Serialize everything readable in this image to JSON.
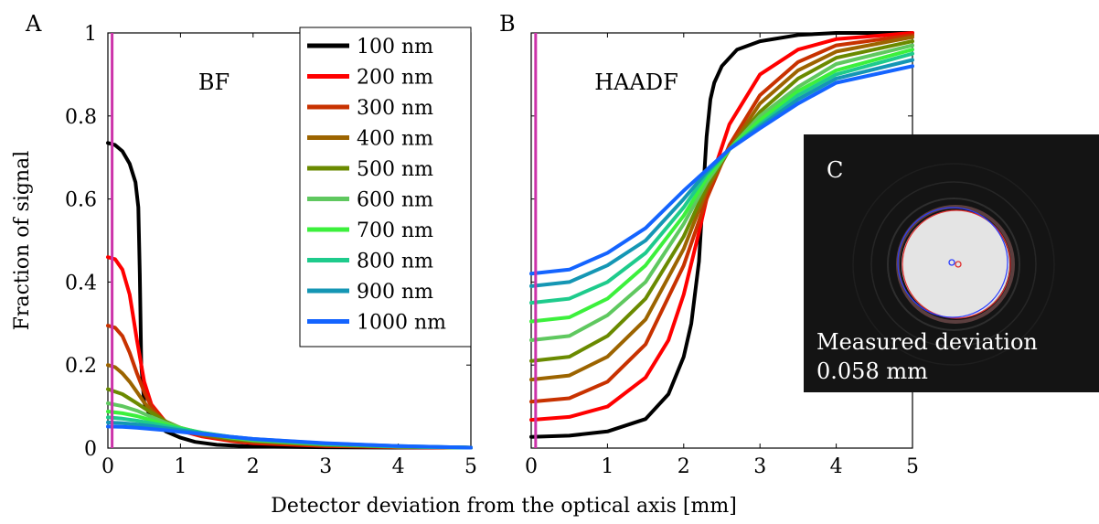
{
  "figure": {
    "shared_xlabel": "Detector deviation from the optical axis [mm]",
    "ylabel": "Fraction of signal"
  },
  "inset": {
    "label": "C",
    "text_line1": "Measured deviation",
    "text_line2": "0.058 mm"
  },
  "chart_data": [
    {
      "type": "line",
      "panel_label": "A",
      "title": "BF",
      "xlim": [
        0,
        5
      ],
      "ylim": [
        0,
        1
      ],
      "xticks": [
        "0",
        "1",
        "2",
        "3",
        "4",
        "5"
      ],
      "yticks": [
        "0",
        "0.2",
        "0.4",
        "0.6",
        "0.8",
        "1"
      ],
      "grid": false,
      "legend_position": "top-right",
      "marker_line": {
        "x": 0.058,
        "color": "#cc33aa"
      },
      "series": [
        {
          "name": "100 nm",
          "color": "#000000",
          "x": [
            0,
            0.1,
            0.2,
            0.3,
            0.38,
            0.42,
            0.44,
            0.46,
            0.5,
            0.6,
            0.8,
            1.0,
            1.2,
            1.5,
            2,
            3,
            4,
            5
          ],
          "y": [
            0.735,
            0.73,
            0.715,
            0.685,
            0.64,
            0.58,
            0.42,
            0.2,
            0.11,
            0.07,
            0.04,
            0.025,
            0.015,
            0.008,
            0.004,
            0.002,
            0.001,
            0.001
          ]
        },
        {
          "name": "200 nm",
          "color": "#ff0000",
          "x": [
            0,
            0.1,
            0.2,
            0.3,
            0.4,
            0.5,
            0.6,
            0.8,
            1.0,
            1.3,
            1.7,
            2,
            3,
            4,
            5
          ],
          "y": [
            0.46,
            0.455,
            0.43,
            0.37,
            0.26,
            0.16,
            0.105,
            0.062,
            0.042,
            0.028,
            0.017,
            0.012,
            0.005,
            0.002,
            0.001
          ]
        },
        {
          "name": "300 nm",
          "color": "#c83200",
          "x": [
            0,
            0.1,
            0.2,
            0.3,
            0.4,
            0.5,
            0.6,
            0.8,
            1.0,
            1.3,
            1.7,
            2,
            3,
            4,
            5
          ],
          "y": [
            0.295,
            0.29,
            0.27,
            0.23,
            0.18,
            0.135,
            0.1,
            0.062,
            0.044,
            0.03,
            0.019,
            0.014,
            0.006,
            0.003,
            0.001
          ]
        },
        {
          "name": "400 nm",
          "color": "#9c6400",
          "x": [
            0,
            0.1,
            0.2,
            0.3,
            0.4,
            0.5,
            0.6,
            0.8,
            1.0,
            1.3,
            1.7,
            2,
            3,
            4,
            5
          ],
          "y": [
            0.2,
            0.195,
            0.18,
            0.16,
            0.135,
            0.11,
            0.09,
            0.062,
            0.046,
            0.032,
            0.021,
            0.016,
            0.007,
            0.003,
            0.001
          ]
        },
        {
          "name": "500 nm",
          "color": "#6a8a00",
          "x": [
            0,
            0.2,
            0.4,
            0.6,
            0.8,
            1.0,
            1.3,
            1.7,
            2,
            3,
            4,
            5
          ],
          "y": [
            0.142,
            0.13,
            0.108,
            0.085,
            0.064,
            0.049,
            0.034,
            0.023,
            0.018,
            0.008,
            0.003,
            0.001
          ]
        },
        {
          "name": "600 nm",
          "color": "#5fc85f",
          "x": [
            0,
            0.2,
            0.4,
            0.6,
            0.8,
            1.0,
            1.3,
            1.7,
            2,
            3,
            4,
            5
          ],
          "y": [
            0.108,
            0.101,
            0.09,
            0.075,
            0.061,
            0.049,
            0.036,
            0.025,
            0.019,
            0.009,
            0.004,
            0.001
          ]
        },
        {
          "name": "700 nm",
          "color": "#3cf03c",
          "x": [
            0,
            0.2,
            0.4,
            0.6,
            0.8,
            1.0,
            1.3,
            1.7,
            2,
            3,
            4,
            5
          ],
          "y": [
            0.088,
            0.084,
            0.077,
            0.067,
            0.057,
            0.048,
            0.037,
            0.026,
            0.02,
            0.01,
            0.004,
            0.001
          ]
        },
        {
          "name": "800 nm",
          "color": "#1ecb8c",
          "x": [
            0,
            0.2,
            0.4,
            0.6,
            0.8,
            1.0,
            1.3,
            1.7,
            2,
            3,
            4,
            5
          ],
          "y": [
            0.074,
            0.071,
            0.066,
            0.06,
            0.053,
            0.046,
            0.037,
            0.027,
            0.021,
            0.01,
            0.004,
            0.001
          ]
        },
        {
          "name": "900 nm",
          "color": "#1496b4",
          "x": [
            0,
            0.2,
            0.4,
            0.6,
            0.8,
            1.0,
            1.3,
            1.7,
            2,
            3,
            4,
            5
          ],
          "y": [
            0.062,
            0.06,
            0.057,
            0.053,
            0.048,
            0.043,
            0.036,
            0.027,
            0.022,
            0.011,
            0.005,
            0.001
          ]
        },
        {
          "name": "1000 nm",
          "color": "#1464ff",
          "x": [
            0,
            0.2,
            0.4,
            0.6,
            0.8,
            1.0,
            1.3,
            1.7,
            2,
            3,
            4,
            5
          ],
          "y": [
            0.052,
            0.051,
            0.049,
            0.046,
            0.043,
            0.039,
            0.034,
            0.027,
            0.022,
            0.012,
            0.005,
            0.001
          ]
        }
      ]
    },
    {
      "type": "line",
      "panel_label": "B",
      "title": "HAADF",
      "xlim": [
        0,
        5
      ],
      "ylim": [
        0,
        1
      ],
      "xticks": [
        "0",
        "1",
        "2",
        "3",
        "4",
        "5"
      ],
      "grid": false,
      "marker_line": {
        "x": 0.058,
        "color": "#cc33aa"
      },
      "series": [
        {
          "name": "100 nm",
          "color": "#000000",
          "x": [
            0,
            0.5,
            1.0,
            1.5,
            1.8,
            2.0,
            2.1,
            2.2,
            2.25,
            2.3,
            2.35,
            2.4,
            2.5,
            2.7,
            3.0,
            3.5,
            4,
            5
          ],
          "y": [
            0.027,
            0.03,
            0.04,
            0.07,
            0.13,
            0.22,
            0.3,
            0.45,
            0.6,
            0.75,
            0.84,
            0.88,
            0.92,
            0.96,
            0.98,
            0.995,
            1.0,
            1.0
          ]
        },
        {
          "name": "200 nm",
          "color": "#ff0000",
          "x": [
            0,
            0.5,
            1.0,
            1.5,
            1.8,
            2.0,
            2.2,
            2.3,
            2.4,
            2.6,
            3.0,
            3.5,
            4,
            5
          ],
          "y": [
            0.068,
            0.075,
            0.1,
            0.17,
            0.26,
            0.37,
            0.52,
            0.6,
            0.67,
            0.78,
            0.9,
            0.96,
            0.985,
            1.0
          ]
        },
        {
          "name": "300 nm",
          "color": "#c83200",
          "x": [
            0,
            0.5,
            1.0,
            1.5,
            2.0,
            2.3,
            2.6,
            3.0,
            3.5,
            4,
            5
          ],
          "y": [
            0.112,
            0.12,
            0.16,
            0.25,
            0.44,
            0.6,
            0.73,
            0.85,
            0.93,
            0.97,
            0.995
          ]
        },
        {
          "name": "400 nm",
          "color": "#9c6400",
          "x": [
            0,
            0.5,
            1.0,
            1.5,
            2.0,
            2.3,
            2.6,
            3.0,
            3.5,
            4,
            5
          ],
          "y": [
            0.165,
            0.175,
            0.22,
            0.31,
            0.48,
            0.62,
            0.72,
            0.83,
            0.91,
            0.955,
            0.99
          ]
        },
        {
          "name": "500 nm",
          "color": "#6a8a00",
          "x": [
            0,
            0.5,
            1.0,
            1.5,
            2.0,
            2.3,
            2.6,
            3.0,
            3.5,
            4,
            5
          ],
          "y": [
            0.21,
            0.22,
            0.27,
            0.36,
            0.51,
            0.63,
            0.72,
            0.81,
            0.89,
            0.94,
            0.98
          ]
        },
        {
          "name": "600 nm",
          "color": "#5fc85f",
          "x": [
            0,
            0.5,
            1.0,
            1.5,
            2.0,
            2.3,
            2.6,
            3.0,
            3.5,
            4,
            5
          ],
          "y": [
            0.26,
            0.27,
            0.32,
            0.4,
            0.54,
            0.64,
            0.72,
            0.8,
            0.87,
            0.925,
            0.97
          ]
        },
        {
          "name": "700 nm",
          "color": "#3cf03c",
          "x": [
            0,
            0.5,
            1.0,
            1.5,
            2.0,
            2.3,
            2.6,
            3.0,
            3.5,
            4,
            5
          ],
          "y": [
            0.305,
            0.315,
            0.36,
            0.44,
            0.56,
            0.65,
            0.72,
            0.79,
            0.86,
            0.91,
            0.96
          ]
        },
        {
          "name": "800 nm",
          "color": "#1ecb8c",
          "x": [
            0,
            0.5,
            1.0,
            1.5,
            2.0,
            2.3,
            2.6,
            3.0,
            3.5,
            4,
            5
          ],
          "y": [
            0.35,
            0.36,
            0.4,
            0.47,
            0.58,
            0.66,
            0.72,
            0.78,
            0.85,
            0.9,
            0.95
          ]
        },
        {
          "name": "900 nm",
          "color": "#1496b4",
          "x": [
            0,
            0.5,
            1.0,
            1.5,
            2.0,
            2.3,
            2.6,
            3.0,
            3.5,
            4,
            5
          ],
          "y": [
            0.39,
            0.4,
            0.44,
            0.5,
            0.6,
            0.665,
            0.72,
            0.775,
            0.84,
            0.89,
            0.935
          ]
        },
        {
          "name": "1000 nm",
          "color": "#1464ff",
          "x": [
            0,
            0.5,
            1.0,
            1.5,
            2.0,
            2.3,
            2.6,
            3.0,
            3.5,
            4,
            5
          ],
          "y": [
            0.42,
            0.43,
            0.47,
            0.53,
            0.62,
            0.67,
            0.72,
            0.77,
            0.83,
            0.88,
            0.92
          ]
        }
      ]
    }
  ]
}
